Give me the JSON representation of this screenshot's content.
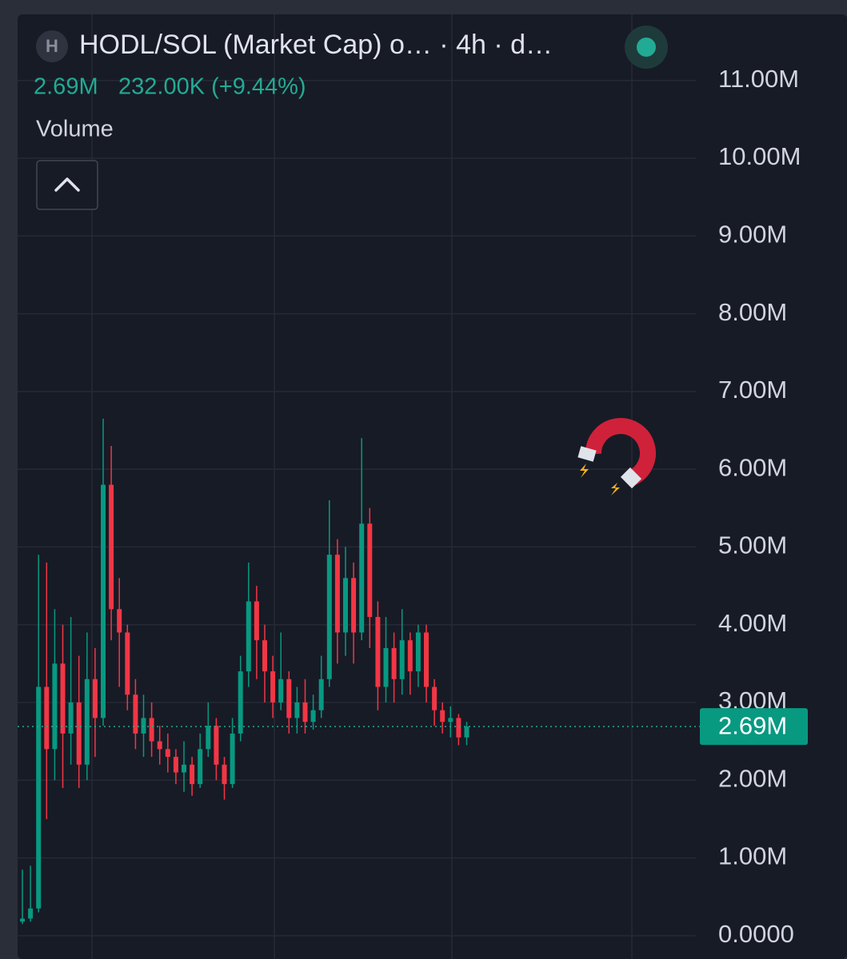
{
  "header": {
    "icon_letter": "H",
    "title": "HODL/SOL (Market Cap) o… · 4h · d…",
    "price": "2.69M",
    "change": "232.00K (+9.44%)",
    "indicator": "Volume"
  },
  "chart_data": {
    "type": "candlestick",
    "up_color": "#089981",
    "down_color": "#f23645",
    "ylim": [
      -300000,
      11830000
    ],
    "yticks": [
      {
        "value": 0,
        "label": "0.0000"
      },
      {
        "value": 1000000,
        "label": "1.00M"
      },
      {
        "value": 2000000,
        "label": "2.00M"
      },
      {
        "value": 3000000,
        "label": "3.00M"
      },
      {
        "value": 4000000,
        "label": "4.00M"
      },
      {
        "value": 5000000,
        "label": "5.00M"
      },
      {
        "value": 6000000,
        "label": "6.00M"
      },
      {
        "value": 7000000,
        "label": "7.00M"
      },
      {
        "value": 8000000,
        "label": "8.00M"
      },
      {
        "value": 9000000,
        "label": "9.00M"
      },
      {
        "value": 10000000,
        "label": "10.00M"
      },
      {
        "value": 11000000,
        "label": "11.00M"
      }
    ],
    "grid": true,
    "last_price": {
      "value": 2690000,
      "label": "2.69M"
    },
    "open": [
      180000,
      220000,
      350000,
      3200000,
      2400000,
      3500000,
      2600000,
      3000000,
      2200000,
      3300000,
      2800000,
      5800000,
      4200000,
      3900000,
      3100000,
      2600000,
      2800000,
      2500000,
      2400000,
      2300000,
      2100000,
      2200000,
      1950000,
      2400000,
      2700000,
      2200000,
      1950000,
      2600000,
      3400000,
      4300000,
      3800000,
      3400000,
      3000000,
      3300000,
      2800000,
      3000000,
      2750000,
      2900000,
      3300000,
      4900000,
      3900000,
      4600000,
      3900000,
      5300000,
      4100000,
      3200000,
      3700000,
      3300000,
      3800000,
      3400000,
      3900000,
      3200000,
      2900000,
      2750000,
      2800000,
      2550000
    ],
    "high": [
      850000,
      900000,
      4900000,
      4800000,
      4200000,
      4000000,
      4100000,
      3600000,
      3900000,
      3700000,
      6650000,
      6300000,
      4600000,
      4000000,
      3300000,
      3100000,
      3000000,
      2700000,
      2600000,
      2400000,
      2500000,
      2300000,
      2600000,
      3000000,
      2800000,
      2300000,
      2800000,
      3600000,
      4800000,
      4500000,
      4000000,
      3600000,
      3900000,
      3400000,
      3200000,
      3300000,
      3100000,
      3600000,
      5600000,
      5100000,
      5000000,
      4800000,
      6400000,
      5500000,
      4300000,
      4100000,
      3900000,
      4200000,
      3900000,
      4000000,
      4000000,
      3300000,
      3000000,
      2950000,
      2850000,
      2750000
    ],
    "low": [
      150000,
      180000,
      300000,
      1500000,
      2000000,
      1900000,
      2200000,
      1900000,
      2000000,
      2300000,
      2700000,
      3800000,
      3200000,
      2900000,
      2400000,
      2300000,
      2300000,
      2200000,
      2100000,
      1950000,
      1850000,
      1800000,
      1900000,
      2300000,
      2000000,
      1750000,
      1900000,
      2500000,
      3200000,
      3300000,
      3000000,
      2800000,
      2900000,
      2600000,
      2600000,
      2600000,
      2650000,
      2800000,
      3200000,
      3500000,
      3600000,
      3500000,
      3800000,
      3700000,
      2900000,
      3000000,
      3000000,
      3100000,
      3100000,
      3200000,
      3000000,
      2700000,
      2600000,
      2550000,
      2450000,
      2450000
    ],
    "close": [
      220000,
      350000,
      3200000,
      2400000,
      3500000,
      2600000,
      3000000,
      2200000,
      3300000,
      2800000,
      5800000,
      4200000,
      3900000,
      3100000,
      2600000,
      2800000,
      2500000,
      2400000,
      2300000,
      2100000,
      2200000,
      1950000,
      2400000,
      2700000,
      2200000,
      1950000,
      2600000,
      3400000,
      4300000,
      3800000,
      3400000,
      3000000,
      3300000,
      2800000,
      3000000,
      2750000,
      2900000,
      3300000,
      4900000,
      3900000,
      4600000,
      3900000,
      5300000,
      4100000,
      3200000,
      3700000,
      3300000,
      3800000,
      3400000,
      3900000,
      3200000,
      2900000,
      2750000,
      2800000,
      2550000,
      2690000
    ]
  }
}
